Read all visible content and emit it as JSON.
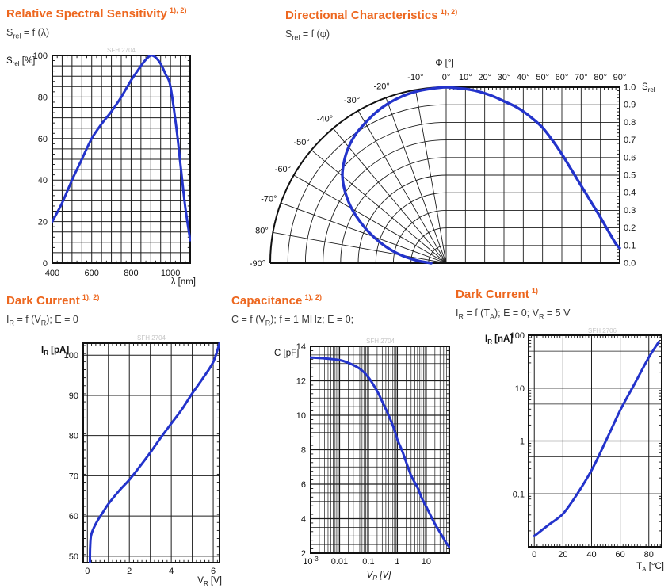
{
  "colors": {
    "accent": "#ed671f",
    "curve": "#2333cb",
    "grid": "#1c1c1c",
    "border": "#111111",
    "watermark": "#c6c6c6",
    "subtitle_text": "#3a3a3a"
  },
  "chart_data": [
    {
      "id": "spectral-sensitivity",
      "type": "line",
      "title": "Relative Spectral Sensitivity",
      "note": "1), 2)",
      "subtitle_segs": [
        {
          "t": "S"
        },
        {
          "t": "rel",
          "sub": true
        },
        {
          "t": " = f (λ)"
        }
      ],
      "watermark": "SFH 2704",
      "x": {
        "scale": "linear",
        "min": 400,
        "max": 1100,
        "grid_step": 50,
        "minor_step": 25,
        "ticks": [
          400,
          600,
          800,
          1000
        ],
        "label_segs": [
          {
            "t": "λ [nm]"
          }
        ]
      },
      "y": {
        "scale": "linear",
        "min": 0,
        "max": 100,
        "grid_step": 5,
        "minor_step": 2.5,
        "ticks": [
          0,
          20,
          40,
          60,
          80,
          100
        ],
        "label_segs": [
          {
            "t": "S"
          },
          {
            "t": "rel",
            "sub": true
          },
          {
            "t": " [%]"
          }
        ]
      },
      "points": [
        [
          400,
          20
        ],
        [
          450,
          29
        ],
        [
          500,
          40
        ],
        [
          550,
          50
        ],
        [
          600,
          60
        ],
        [
          650,
          67
        ],
        [
          700,
          73
        ],
        [
          750,
          80
        ],
        [
          800,
          88
        ],
        [
          850,
          95
        ],
        [
          875,
          98
        ],
        [
          900,
          100
        ],
        [
          925,
          99
        ],
        [
          950,
          96
        ],
        [
          975,
          91
        ],
        [
          1000,
          85
        ],
        [
          1030,
          65
        ],
        [
          1050,
          48
        ],
        [
          1075,
          27
        ],
        [
          1100,
          11
        ]
      ]
    },
    {
      "id": "directional-characteristics",
      "type": "polar_line",
      "title": "Directional Characteristics",
      "note": "1), 2)",
      "subtitle_segs": [
        {
          "t": "S"
        },
        {
          "t": "rel",
          "sub": true
        },
        {
          "t": " = f (φ)"
        }
      ],
      "watermark": "",
      "angle": {
        "min": -90,
        "max": 90,
        "step": 10,
        "unit": "°",
        "label_segs": [
          {
            "t": "Φ [°]"
          }
        ]
      },
      "radius": {
        "min": 0,
        "max": 1,
        "step": 0.1,
        "label_segs": [
          {
            "t": "S"
          },
          {
            "t": "rel",
            "sub": true
          }
        ]
      },
      "points": [
        [
          0,
          1.0
        ],
        [
          5,
          0.995
        ],
        [
          10,
          0.99
        ],
        [
          15,
          0.98
        ],
        [
          20,
          0.965
        ],
        [
          25,
          0.945
        ],
        [
          30,
          0.92
        ],
        [
          35,
          0.895
        ],
        [
          40,
          0.862
        ],
        [
          45,
          0.82
        ],
        [
          50,
          0.77
        ],
        [
          55,
          0.7
        ],
        [
          60,
          0.62
        ],
        [
          65,
          0.53
        ],
        [
          70,
          0.44
        ],
        [
          75,
          0.35
        ],
        [
          80,
          0.26
        ],
        [
          85,
          0.165
        ],
        [
          88,
          0.11
        ],
        [
          90,
          0.085
        ]
      ]
    },
    {
      "id": "dark-current-voltage",
      "type": "line",
      "title": "Dark Current",
      "note": "1), 2)",
      "subtitle_segs": [
        {
          "t": "I"
        },
        {
          "t": "R",
          "sub": true
        },
        {
          "t": " = f (V"
        },
        {
          "t": "R",
          "sub": true
        },
        {
          "t": "); E = 0"
        }
      ],
      "watermark": "SFH 2704",
      "x": {
        "scale": "linear",
        "min": -0.2,
        "max": 6.3,
        "grid_step": 1,
        "grid_from": 0,
        "minor_step": 0.2,
        "ticks": [
          0,
          2,
          4,
          6
        ],
        "label_segs": [
          {
            "t": "V"
          },
          {
            "t": "R",
            "sub": true
          },
          {
            "t": " [V]"
          }
        ]
      },
      "y": {
        "scale": "linear",
        "min": 48.4,
        "max": 103,
        "grid_step": 10,
        "grid_from": 50,
        "minor_step": 2,
        "ticks": [
          50,
          60,
          70,
          80,
          90,
          100
        ],
        "label_segs": [
          {
            "t": "I"
          },
          {
            "t": "R",
            "sub": true
          },
          {
            "t": " [pA]"
          }
        ]
      },
      "points": [
        [
          0.12,
          48.4
        ],
        [
          0.13,
          52
        ],
        [
          0.17,
          55
        ],
        [
          0.3,
          57
        ],
        [
          0.5,
          59
        ],
        [
          0.75,
          61
        ],
        [
          1,
          63
        ],
        [
          1.5,
          66.2
        ],
        [
          2,
          69
        ],
        [
          2.5,
          72.3
        ],
        [
          3,
          75.8
        ],
        [
          3.5,
          79.5
        ],
        [
          4,
          83
        ],
        [
          4.5,
          86.5
        ],
        [
          5,
          90.5
        ],
        [
          5.5,
          94.2
        ],
        [
          6,
          98.3
        ],
        [
          6.3,
          103
        ]
      ]
    },
    {
      "id": "capacitance",
      "type": "line",
      "title": "Capacitance",
      "note": "1), 2)",
      "subtitle_segs": [
        {
          "t": "C = f (V"
        },
        {
          "t": "R",
          "sub": true
        },
        {
          "t": "); f = 1 MHz; E = 0;"
        }
      ],
      "watermark": "SFH 2704",
      "x": {
        "scale": "log",
        "min": 0.001,
        "max": 63,
        "log_minors": [
          2,
          3,
          4,
          5,
          6,
          7,
          8,
          9
        ],
        "ticks": [
          0.001,
          0.01,
          0.1,
          1,
          10
        ],
        "tick_labels": [
          {
            "t": "10",
            "sup": "-3"
          },
          {
            "t": "0.01"
          },
          {
            "t": "0.1"
          },
          {
            "t": "1"
          },
          {
            "t": "10"
          }
        ],
        "label_segs": [
          {
            "t": "V"
          },
          {
            "t": "R",
            "sub": true
          },
          {
            "t": " [V]"
          }
        ]
      },
      "y": {
        "scale": "linear",
        "min": 2,
        "max": 14,
        "grid_step": 0.5,
        "major_step": 2,
        "minor_step": 0.25,
        "ticks": [
          2,
          4,
          6,
          8,
          10,
          12,
          14
        ],
        "label_segs": [
          {
            "t": "C [pF]"
          }
        ]
      },
      "points": [
        [
          0.001,
          13.35
        ],
        [
          0.003,
          13.3
        ],
        [
          0.01,
          13.2
        ],
        [
          0.02,
          13.05
        ],
        [
          0.05,
          12.7
        ],
        [
          0.1,
          12.2
        ],
        [
          0.2,
          11.4
        ],
        [
          0.3,
          10.8
        ],
        [
          0.5,
          10.0
        ],
        [
          0.7,
          9.4
        ],
        [
          1,
          8.6
        ],
        [
          1.5,
          7.9
        ],
        [
          2,
          7.3
        ],
        [
          3,
          6.5
        ],
        [
          5,
          5.8
        ],
        [
          7,
          5.2
        ],
        [
          10,
          4.7
        ],
        [
          15,
          4.1
        ],
        [
          20,
          3.7
        ],
        [
          30,
          3.2
        ],
        [
          45,
          2.7
        ],
        [
          63,
          2.35
        ]
      ]
    },
    {
      "id": "dark-current-temperature",
      "type": "line",
      "title": "Dark Current",
      "note": "1)",
      "subtitle_segs": [
        {
          "t": "I"
        },
        {
          "t": "R",
          "sub": true
        },
        {
          "t": " = f (T"
        },
        {
          "t": "A",
          "sub": true
        },
        {
          "t": "); E = 0; V"
        },
        {
          "t": "R",
          "sub": true
        },
        {
          "t": " = 5 V"
        }
      ],
      "watermark": "SFH 2706",
      "x": {
        "scale": "linear",
        "min": -4,
        "max": 89,
        "grid_step": 20,
        "grid_from": 0,
        "minor_step": 2,
        "ticks": [
          0,
          20,
          40,
          60,
          80
        ],
        "label_segs": [
          {
            "t": "T"
          },
          {
            "t": "A",
            "sub": true
          },
          {
            "t": " [°C]"
          }
        ]
      },
      "y": {
        "scale": "log",
        "min": 0.01,
        "max": 100,
        "log_minors": [
          5
        ],
        "ticks": [
          0.1,
          1,
          10,
          100
        ],
        "tick_labels": [
          {
            "t": "0.1"
          },
          {
            "t": "1"
          },
          {
            "t": "10"
          },
          {
            "t": "100"
          }
        ],
        "label_segs": [
          {
            "t": "I"
          },
          {
            "t": "R",
            "sub": true
          },
          {
            "t": " [nA]"
          }
        ]
      },
      "points": [
        [
          0,
          0.016
        ],
        [
          10,
          0.026
        ],
        [
          20,
          0.042
        ],
        [
          30,
          0.1
        ],
        [
          40,
          0.28
        ],
        [
          50,
          1.0
        ],
        [
          60,
          3.8
        ],
        [
          70,
          12
        ],
        [
          80,
          38
        ],
        [
          87,
          75
        ]
      ]
    }
  ]
}
